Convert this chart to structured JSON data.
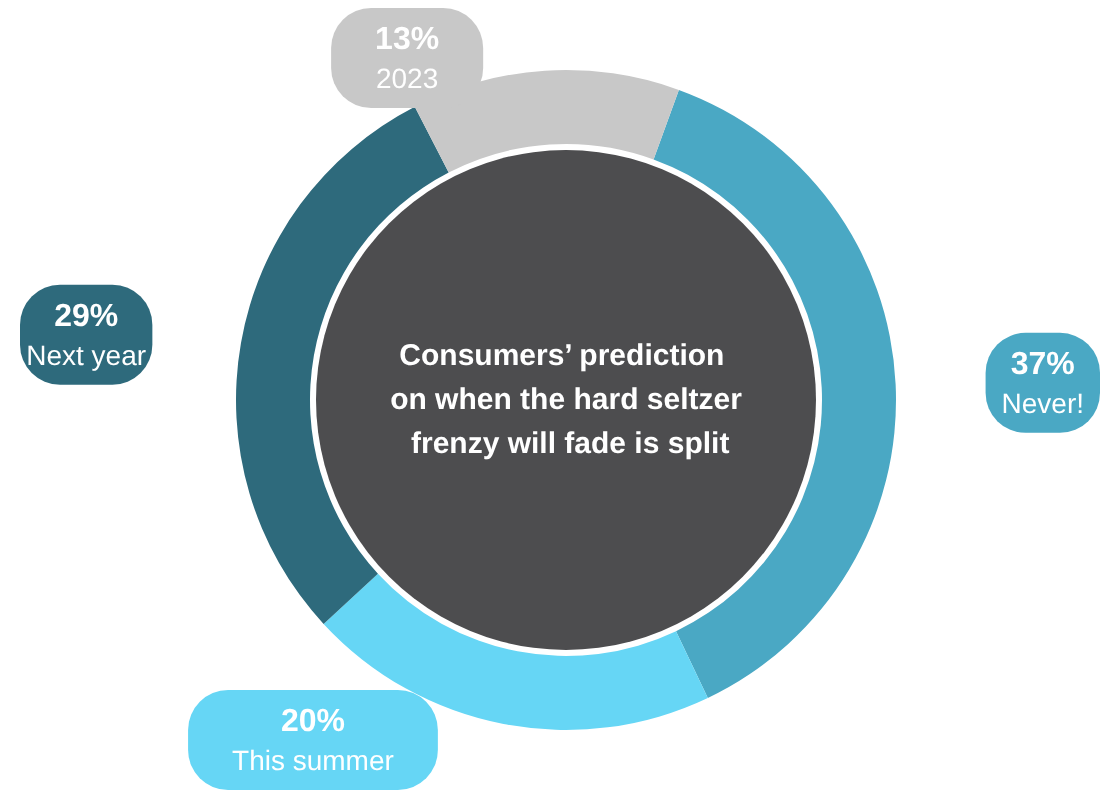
{
  "chart_data": {
    "type": "donut",
    "title": "Consumers’ prediction on when the hard seltzer frenzy will fade is split",
    "categories": [
      "Never!",
      "This summer",
      "Next year",
      "2023"
    ],
    "values": [
      37,
      20,
      29,
      13
    ],
    "value_labels": [
      "37%",
      "20%",
      "29%",
      "13%"
    ],
    "colors": [
      "#4aa8c4",
      "#66d6f5",
      "#2e6a7c",
      "#c8c8c8"
    ],
    "legend": false
  }
}
